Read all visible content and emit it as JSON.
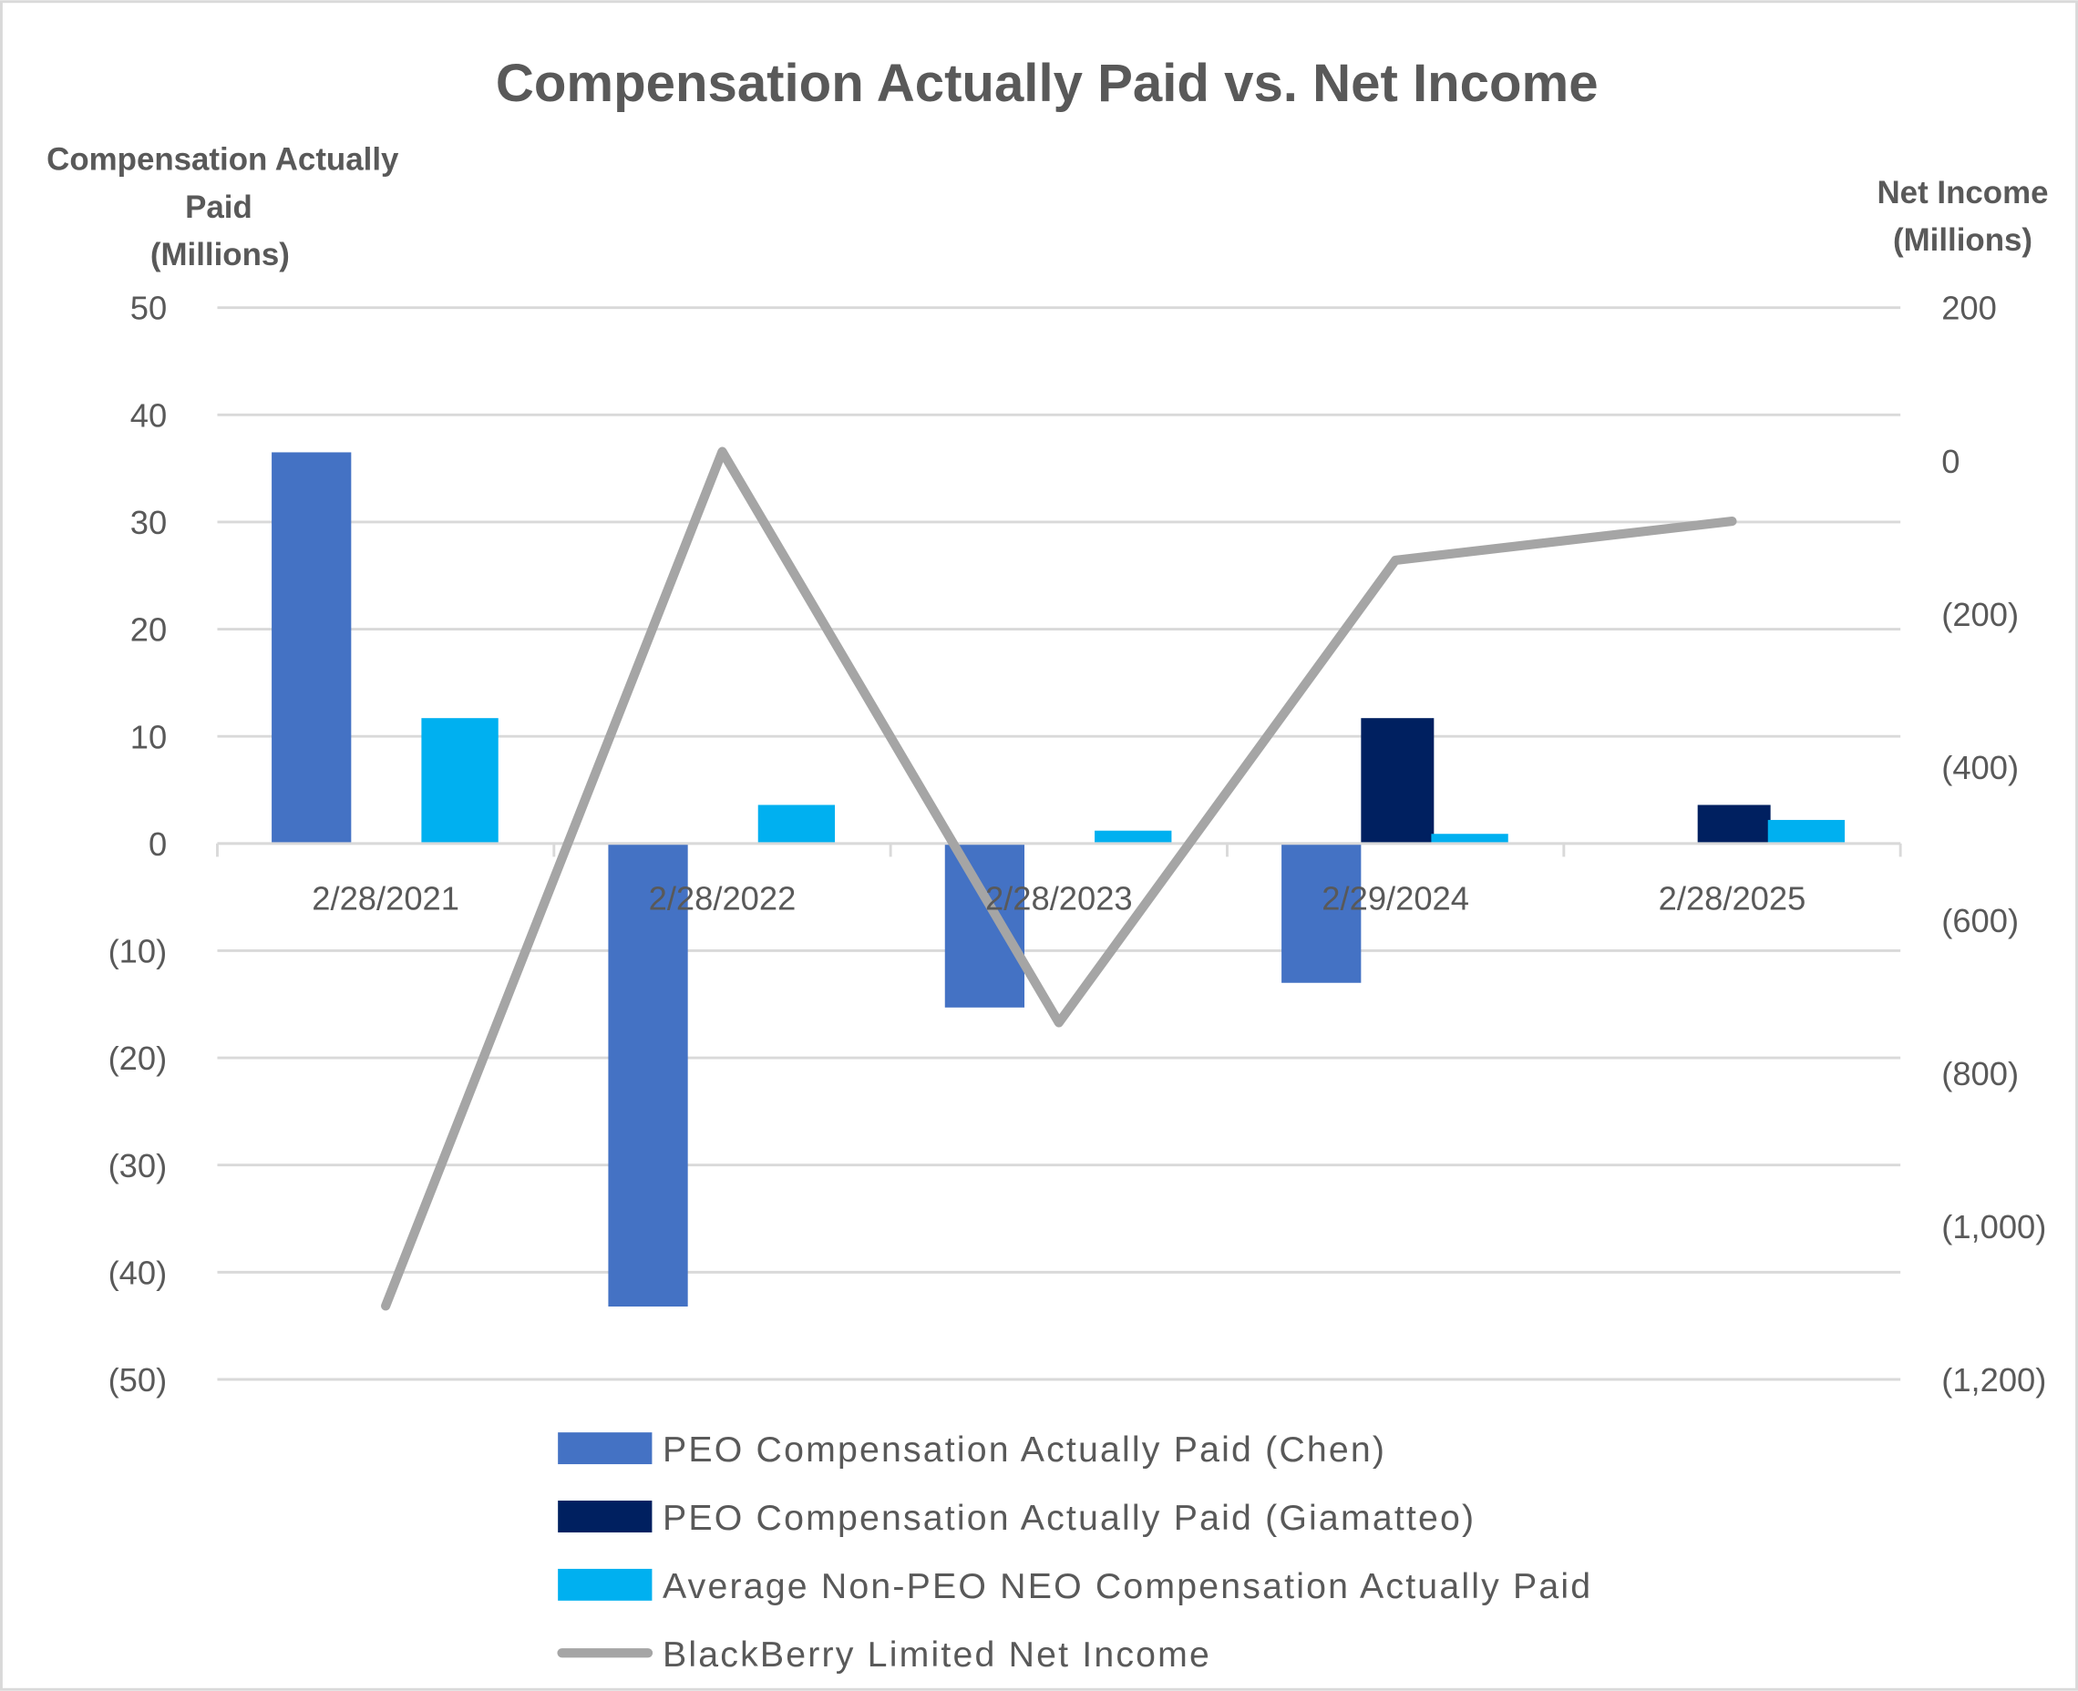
{
  "chart_data": {
    "type": "bar",
    "title": "Compensation Actually Paid vs. Net Income",
    "ylabel_left": [
      "Compensation Actually",
      "Paid",
      "(Millions)"
    ],
    "ylabel_right": [
      "Net Income",
      "(Millions)"
    ],
    "categories": [
      "2/28/2021",
      "2/28/2022",
      "2/28/2023",
      "2/29/2024",
      "2/28/2025"
    ],
    "ylim_left": [
      -50,
      50
    ],
    "yticks_left": [
      50,
      40,
      30,
      20,
      10,
      0,
      -10,
      -20,
      -30,
      -40,
      -50
    ],
    "yticklabels_left": [
      "50",
      "40",
      "30",
      "20",
      "10",
      "0",
      "(10)",
      "(20)",
      "(30)",
      "(40)",
      "(50)"
    ],
    "ylim_right": [
      -1200,
      200
    ],
    "yticks_right": [
      200,
      0,
      -200,
      -400,
      -600,
      -800,
      -1000,
      -1200
    ],
    "yticklabels_right": [
      "200",
      "0",
      "(200)",
      "(400)",
      "(600)",
      "(800)",
      "(1,000)",
      "(1,200)"
    ],
    "grid": true,
    "legend_placement": "bottom",
    "series": [
      {
        "name": "PEO Compensation Actually Paid (Chen)",
        "type": "bar",
        "axis": "left",
        "color": "#4472C4",
        "values": [
          36.5,
          -43.2,
          -15.3,
          -13.0,
          null
        ]
      },
      {
        "name": "PEO Compensation Actually Paid (Giamatteo)",
        "type": "bar",
        "axis": "left",
        "color": "#002060",
        "values": [
          null,
          null,
          null,
          11.7,
          3.6
        ]
      },
      {
        "name": "Average Non-PEO NEO Compensation Actually Paid",
        "type": "bar",
        "axis": "left",
        "color": "#00B0F0",
        "values": [
          11.7,
          3.6,
          1.2,
          0.9,
          2.2
        ]
      },
      {
        "name": "BlackBerry Limited Net Income",
        "type": "line",
        "axis": "right",
        "color": "#A5A5A5",
        "values": [
          -1104,
          12,
          -734,
          -130,
          -79
        ]
      }
    ]
  }
}
